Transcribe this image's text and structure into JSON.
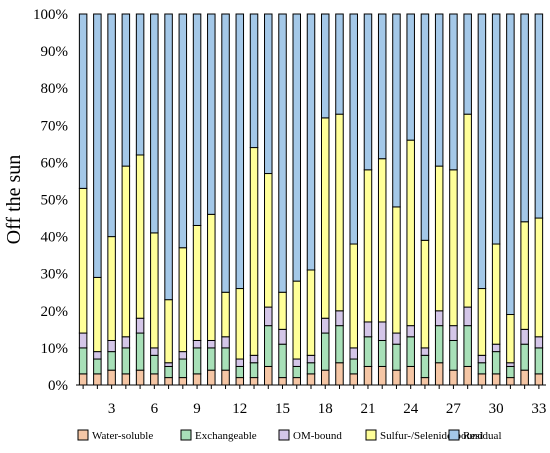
{
  "chart_data": {
    "type": "bar",
    "stacked": true,
    "percent": true,
    "ylabel": "Off the sun",
    "xlabel": "",
    "ylim": [
      0,
      100
    ],
    "yticks": [
      "0%",
      "10%",
      "20%",
      "30%",
      "40%",
      "50%",
      "60%",
      "70%",
      "80%",
      "90%",
      "100%"
    ],
    "categories": [
      "1",
      "2",
      "3",
      "4",
      "5",
      "6",
      "7",
      "8",
      "9",
      "10",
      "11",
      "12",
      "13",
      "14",
      "15",
      "16",
      "17",
      "18",
      "19",
      "20",
      "21",
      "22",
      "23",
      "24",
      "25",
      "26",
      "27",
      "28",
      "29",
      "30",
      "31",
      "32",
      "33"
    ],
    "xtick_labels": [
      "3",
      "6",
      "9",
      "12",
      "15",
      "18",
      "21",
      "24",
      "27",
      "30",
      "33"
    ],
    "legend_position": "bottom",
    "series": [
      {
        "name": "Water-soluble",
        "color": "#f5c6a5",
        "values": [
          3,
          3,
          4,
          3,
          4,
          3,
          2,
          2,
          3,
          4,
          4,
          2,
          2,
          5,
          2,
          2,
          3,
          4,
          6,
          3,
          5,
          5,
          4,
          5,
          2,
          6,
          4,
          5,
          3,
          3,
          2,
          4,
          3
        ]
      },
      {
        "name": "Exchangeable",
        "color": "#a8e0b8",
        "values": [
          7,
          4,
          5,
          7,
          10,
          5,
          3,
          5,
          7,
          6,
          6,
          3,
          4,
          11,
          9,
          3,
          3,
          10,
          10,
          4,
          8,
          7,
          7,
          8,
          6,
          10,
          8,
          11,
          3,
          6,
          3,
          7,
          7
        ]
      },
      {
        "name": "OM-bound",
        "color": "#d4c6e8",
        "values": [
          4,
          2,
          3,
          3,
          4,
          2,
          1,
          2,
          2,
          2,
          3,
          2,
          2,
          5,
          4,
          2,
          2,
          4,
          4,
          3,
          4,
          5,
          3,
          3,
          2,
          4,
          4,
          5,
          2,
          2,
          1,
          4,
          3
        ]
      },
      {
        "name": "Sulfur-/Selenide-bound",
        "color": "#ffff99",
        "values": [
          39,
          20,
          28,
          46,
          44,
          31,
          17,
          28,
          31,
          34,
          12,
          19,
          56,
          36,
          10,
          21,
          23,
          54,
          53,
          28,
          41,
          44,
          34,
          50,
          29,
          39,
          42,
          52,
          18,
          27,
          13,
          29,
          32
        ]
      },
      {
        "name": "Residual",
        "color": "#a4c8e8",
        "values": [
          47,
          71,
          60,
          41,
          38,
          59,
          77,
          63,
          57,
          54,
          75,
          74,
          36,
          43,
          75,
          72,
          69,
          28,
          27,
          62,
          42,
          39,
          52,
          34,
          61,
          41,
          42,
          27,
          74,
          62,
          81,
          56,
          55
        ]
      }
    ]
  }
}
